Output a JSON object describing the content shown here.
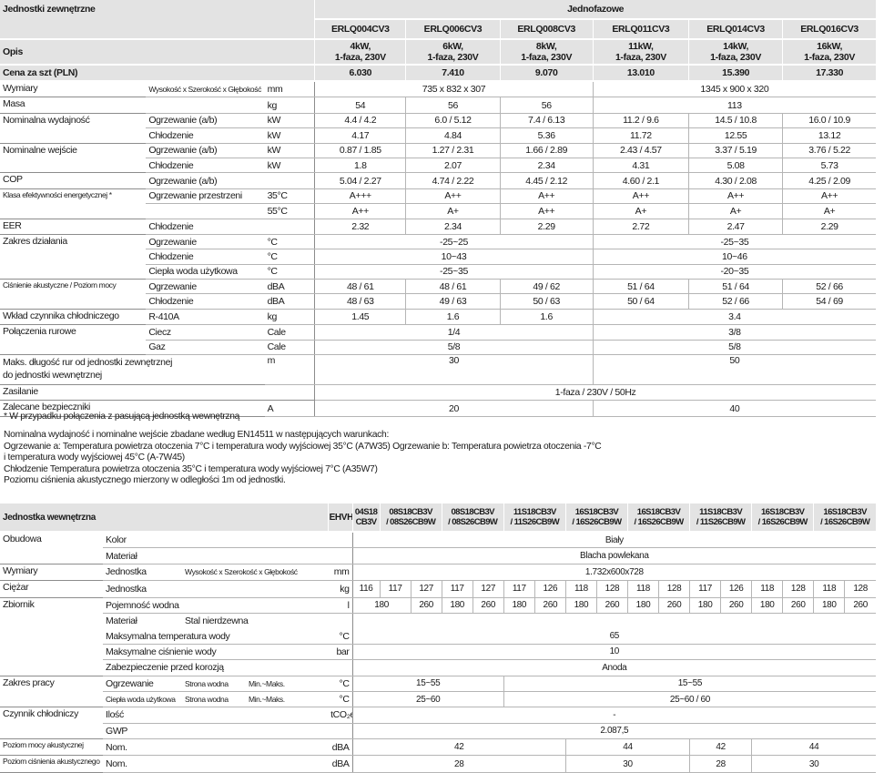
{
  "outdoor": {
    "title": "Jednostki zewnętrzne",
    "group": "Jednofazowe",
    "models": [
      "ERLQ004CV3",
      "ERLQ006CV3",
      "ERLQ008CV3",
      "ERLQ011CV3",
      "ERLQ014CV3",
      "ERLQ016CV3"
    ],
    "opis_label": "Opis",
    "opis": [
      [
        "4kW,",
        "1-faza, 230V"
      ],
      [
        "6kW,",
        "1-faza, 230V"
      ],
      [
        "8kW,",
        "1-faza, 230V"
      ],
      [
        "11kW,",
        "1-faza, 230V"
      ],
      [
        "14kW,",
        "1-faza, 230V"
      ],
      [
        "16kW,",
        "1-faza, 230V"
      ]
    ],
    "price_label": "Cena za szt (PLN)",
    "prices": [
      "6.030",
      "7.410",
      "9.070",
      "13.010",
      "15.390",
      "17.330"
    ],
    "groups": [
      {
        "label": "Wymiary",
        "rows": [
          {
            "sub": "Wysokość x Szerokość x Głębokość",
            "sub_small": true,
            "unit": "mm",
            "cells": [
              {
                "v": "735 x 832 x 307",
                "span": 3
              },
              {
                "v": "1345 x 900 x 320",
                "span": 3
              }
            ]
          }
        ]
      },
      {
        "label": "Masa",
        "rows": [
          {
            "sub": "",
            "unit": "kg",
            "cells": [
              "54",
              "56",
              "56",
              {
                "v": "113",
                "span": 3
              }
            ]
          }
        ]
      },
      {
        "label": "Nominalna wydajność",
        "rows": [
          {
            "sub": "Ogrzewanie (a/b)",
            "unit": "kW",
            "cells": [
              "4.4 / 4.2",
              "6.0 / 5.12",
              "7.4 / 6.13",
              "11.2 / 9.6",
              "14.5 / 10.8",
              "16.0 / 10.9"
            ]
          },
          {
            "sub": "Chłodzenie",
            "unit": "kW",
            "cells": [
              "4.17",
              "4.84",
              "5.36",
              "11.72",
              "12.55",
              "13.12"
            ]
          }
        ]
      },
      {
        "label": "Nominalne wejście",
        "rows": [
          {
            "sub": "Ogrzewanie (a/b)",
            "unit": "kW",
            "cells": [
              "0.87 / 1.85",
              "1.27 / 2.31",
              "1.66 / 2.89",
              "2.43 / 4.57",
              "3.37 / 5.19",
              "3.76 / 5.22"
            ]
          },
          {
            "sub": "Chłodzenie",
            "unit": "kW",
            "cells": [
              "1.8",
              "2.07",
              "2.34",
              "4.31",
              "5.08",
              "5.73"
            ]
          }
        ]
      },
      {
        "label": "COP",
        "rows": [
          {
            "sub": "Ogrzewanie (a/b)",
            "unit": "",
            "cells": [
              "5.04 / 2.27",
              "4.74 / 2.22",
              "4.45 / 2.12",
              "4.60 / 2.1",
              "4.30 / 2.08",
              "4.25 / 2.09"
            ]
          }
        ]
      },
      {
        "label": "Klasa efektywności energetycznej *",
        "label_small": true,
        "rows": [
          {
            "sub": "Ogrzewanie przestrzeni",
            "unit": "35°C",
            "cells": [
              "A+++",
              "A++",
              "A++",
              "A++",
              "A++",
              "A++"
            ]
          },
          {
            "sub": "",
            "unit": "55°C",
            "cells": [
              "A++",
              "A+",
              "A++",
              "A+",
              "A+",
              "A+"
            ]
          }
        ]
      },
      {
        "label": "EER",
        "rows": [
          {
            "sub": "Chłodzenie",
            "unit": "",
            "cells": [
              "2.32",
              "2.34",
              "2.29",
              "2.72",
              "2.47",
              "2.29"
            ]
          }
        ]
      },
      {
        "label": "Zakres działania",
        "rows": [
          {
            "sub": "Ogrzewanie",
            "unit": "°C",
            "cells": [
              {
                "v": "-25~25",
                "span": 3
              },
              {
                "v": "-25~35",
                "span": 3
              }
            ]
          },
          {
            "sub": "Chłodzenie",
            "unit": "°C",
            "cells": [
              {
                "v": "10~43",
                "span": 3
              },
              {
                "v": "10~46",
                "span": 3
              }
            ]
          },
          {
            "sub": "Ciepła woda użytkowa",
            "unit": "°C",
            "cells": [
              {
                "v": "-25~35",
                "span": 3
              },
              {
                "v": "-20~35",
                "span": 3
              }
            ]
          }
        ]
      },
      {
        "label": "Ciśnienie akustyczne / Poziom mocy",
        "label_small": true,
        "rows": [
          {
            "sub": "Ogrzewanie",
            "unit": "dBA",
            "cells": [
              "48 / 61",
              "48 / 61",
              "49 / 62",
              "51 / 64",
              "51 / 64",
              "52 / 66"
            ]
          },
          {
            "sub": "Chłodzenie",
            "unit": "dBA",
            "cells": [
              "48 / 63",
              "49 / 63",
              "50 / 63",
              "50 / 64",
              "52 / 66",
              "54 / 69"
            ]
          }
        ]
      },
      {
        "label": "Wkład czynnika chłodniczego",
        "rows": [
          {
            "sub": "R-410A",
            "unit": "kg",
            "cells": [
              "1.45",
              "1.6",
              "1.6",
              {
                "v": "3.4",
                "span": 3
              }
            ]
          }
        ]
      },
      {
        "label": "Połączenia rurowe",
        "rows": [
          {
            "sub": "Ciecz",
            "unit": "Cale",
            "cells": [
              {
                "v": "1/4",
                "span": 3
              },
              {
                "v": "3/8",
                "span": 3
              }
            ]
          },
          {
            "sub": "Gaz",
            "unit": "Cale",
            "cells": [
              {
                "v": "5/8",
                "span": 3
              },
              {
                "v": "5/8",
                "span": 3
              }
            ]
          }
        ]
      }
    ],
    "max_length": {
      "label": [
        "Maks. długość rur od jednostki zewnętrznej",
        "do jednostki wewnętrznej"
      ],
      "unit": "m",
      "cells": [
        {
          "v": "30",
          "span": 3
        },
        {
          "v": "50",
          "span": 3
        }
      ]
    },
    "power": {
      "label": "Zasilanie",
      "value": "1-faza / 230V / 50Hz"
    },
    "fuses": {
      "label": "Zalecane bezpieczniki",
      "unit": "A",
      "cells": [
        {
          "v": "20",
          "span": 3
        },
        {
          "v": "40",
          "span": 3
        }
      ]
    }
  },
  "notes": {
    "footnote": "* W przypadku połączenia z pasującą jednostką wewnętrzną",
    "lines": [
      "Nominalna wydajność i nominalne wejście zbadane według EN14511 w następujących warunkach:",
      "Ogrzewanie a: Temperatura powietrza otoczenia 7°C i temperatura wody wyjściowej 35°C (A7W35)  Ogrzewanie b: Temperatura powietrza otoczenia -7°C",
      "i temperatura wody wyjściowej 45°C (A-7W45)",
      "Chłodzenie Temperatura powietrza otoczenia 35°C i temperatura wody wyjściowej 7°C (A35W7)",
      "Poziomu ciśnienia akustycznego mierzony w odległości 1m od jednostki."
    ]
  },
  "indoor": {
    "title": "Jednostka wewnętrzna",
    "series": "EHVH",
    "models": [
      {
        "name": [
          "04S18",
          "CB3V"
        ],
        "span": 1
      },
      {
        "name": [
          "08S18CB3V",
          "/ 08S26CB9W"
        ],
        "span": 2
      },
      {
        "name": [
          "08S18CB3V",
          "/ 08S26CB9W"
        ],
        "span": 2
      },
      {
        "name": [
          "11S18CB3V",
          "/ 11S26CB9W"
        ],
        "span": 2
      },
      {
        "name": [
          "16S18CB3V",
          "/ 16S26CB9W"
        ],
        "span": 2
      },
      {
        "name": [
          "16S18CB3V",
          "/ 16S26CB9W"
        ],
        "span": 2
      },
      {
        "name": [
          "11S18CB3V",
          "/ 11S26CB9W"
        ],
        "span": 2
      },
      {
        "name": [
          "16S18CB3V",
          "/ 16S26CB9W"
        ],
        "span": 2
      },
      {
        "name": [
          "16S18CB3V",
          "/ 16S26CB9W"
        ],
        "span": 2
      }
    ],
    "groups": [
      {
        "label": "Obudowa",
        "rows": [
          {
            "sub": [
              "Kolor"
            ],
            "unit": "",
            "cells": [
              {
                "v": "Biały",
                "span": 17
              }
            ]
          },
          {
            "sub": [
              "Materiał"
            ],
            "unit": "",
            "cells": [
              {
                "v": "Blacha powlekana",
                "span": 17
              }
            ]
          }
        ]
      },
      {
        "label": "Wymiary",
        "rows": [
          {
            "sub": [
              "Jednostka",
              "Wysokość x Szerokość x Głębokość"
            ],
            "unit": "mm",
            "cells": [
              {
                "v": "1.732x600x728",
                "span": 17
              }
            ]
          }
        ]
      },
      {
        "label": "Ciężar",
        "rows": [
          {
            "sub": [
              "Jednostka"
            ],
            "unit": "kg",
            "cells": [
              "116",
              "117",
              "127",
              "117",
              "127",
              "117",
              "126",
              "118",
              "128",
              "118",
              "128",
              "117",
              "126",
              "118",
              "128",
              "118",
              "128"
            ]
          }
        ]
      },
      {
        "label": "Zbiornik",
        "rows": [
          {
            "sub": [
              "Pojemność wodna"
            ],
            "unit": "l",
            "cells": [
              {
                "v": "180",
                "span": 2
              },
              "260",
              "180",
              "260",
              "180",
              "260",
              "180",
              "260",
              "180",
              "260",
              "180",
              "260",
              "180",
              "260",
              "180",
              "260"
            ]
          },
          {
            "sub": [
              "Materiał",
              "Stal nierdzewna"
            ],
            "unit": "",
            "noline": true,
            "cells": [
              {
                "v": "",
                "span": 17
              }
            ]
          },
          {
            "sub": [
              "Maksymalna temperatura wody"
            ],
            "unit": "°C",
            "cells": [
              {
                "v": "65",
                "span": 17
              }
            ]
          },
          {
            "sub": [
              "Maksymalne ciśnienie wody"
            ],
            "unit": "bar",
            "cells": [
              {
                "v": "10",
                "span": 17
              }
            ]
          },
          {
            "sub": [
              "Zabezpieczenie przed korozją"
            ],
            "unit": "",
            "cells": [
              {
                "v": "Anoda",
                "span": 17
              }
            ]
          }
        ]
      },
      {
        "label": "Zakres pracy",
        "rows": [
          {
            "sub": [
              "Ogrzewanie",
              "Strona wodna",
              "Min.~Maks."
            ],
            "unit": "°C",
            "cells": [
              {
                "v": "15~55",
                "span": 5
              },
              {
                "v": "15~55",
                "span": 12
              }
            ]
          },
          {
            "sub": [
              "Ciepła woda użytkowa",
              "Strona wodna",
              "Min.~Maks."
            ],
            "sub_small": true,
            "unit": "°C",
            "cells": [
              {
                "v": "25~60",
                "span": 5
              },
              {
                "v": "25~60 / 60",
                "span": 12
              }
            ]
          }
        ]
      },
      {
        "label": "Czynnik chłodniczy",
        "rows": [
          {
            "sub": [
              "Ilość"
            ],
            "unit": "tCO₂eq",
            "cells": [
              {
                "v": "-",
                "span": 17
              }
            ]
          },
          {
            "sub": [
              "GWP"
            ],
            "unit": "",
            "cells": [
              {
                "v": "2.087,5",
                "span": 17
              }
            ]
          }
        ]
      },
      {
        "label": "Poziom mocy akustycznej",
        "label_small": true,
        "rows": [
          {
            "sub": [
              "Nom."
            ],
            "unit": "dBA",
            "cells": [
              {
                "v": "42",
                "span": 7
              },
              {
                "v": "44",
                "span": 4
              },
              {
                "v": "42",
                "span": 2
              },
              {
                "v": "44",
                "span": 4
              }
            ]
          }
        ]
      },
      {
        "label": "Poziom ciśnienia akustycznego",
        "label_small": true,
        "rows": [
          {
            "sub": [
              "Nom."
            ],
            "unit": "dBA",
            "cells": [
              {
                "v": "28",
                "span": 7
              },
              {
                "v": "30",
                "span": 4
              },
              {
                "v": "28",
                "span": 2
              },
              {
                "v": "30",
                "span": 4
              }
            ]
          }
        ]
      }
    ]
  }
}
